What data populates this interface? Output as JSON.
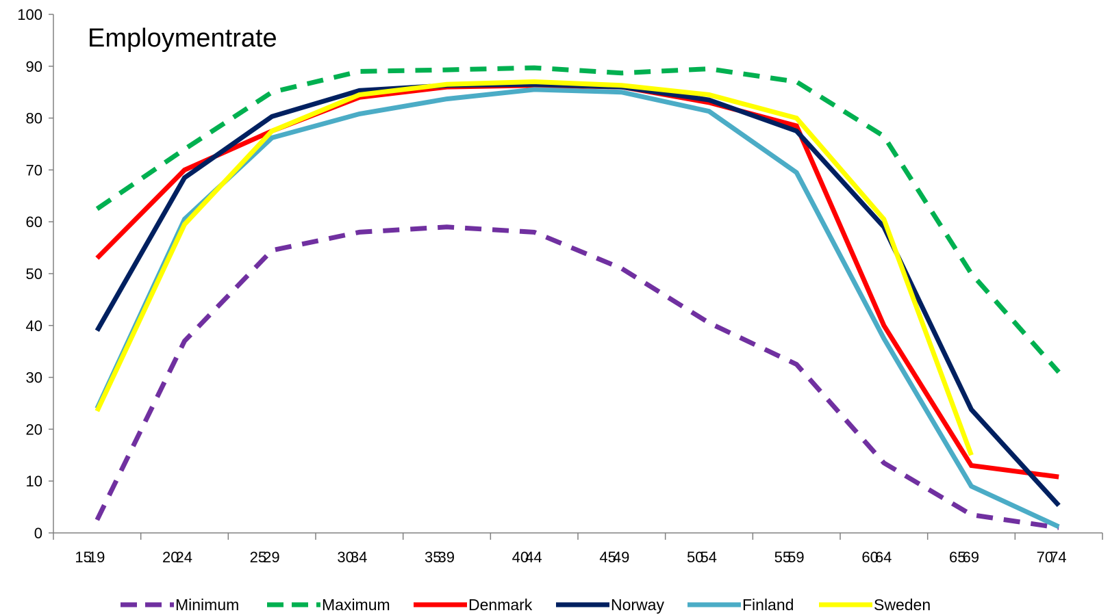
{
  "chart_data": {
    "type": "line",
    "title": "Employmentrate",
    "xlabel": "",
    "ylabel": "",
    "ylim": [
      0,
      100
    ],
    "yticks": [
      0,
      10,
      20,
      30,
      40,
      50,
      60,
      70,
      80,
      90,
      100
    ],
    "categories": [
      "15-19",
      "20-24",
      "25-29",
      "30-34",
      "35-39",
      "40-44",
      "45-49",
      "50-54",
      "55-59",
      "60-64",
      "65-69",
      "70-74"
    ],
    "category_labels": [
      [
        "15",
        "19"
      ],
      [
        "20",
        "24"
      ],
      [
        "25",
        "29"
      ],
      [
        "30",
        "34"
      ],
      [
        "35",
        "39"
      ],
      [
        "40",
        "44"
      ],
      [
        "45",
        "49"
      ],
      [
        "50",
        "54"
      ],
      [
        "55",
        "59"
      ],
      [
        "60",
        "64"
      ],
      [
        "65",
        "69"
      ],
      [
        "70",
        "74"
      ]
    ],
    "grid": false,
    "legend_position": "bottom",
    "series": [
      {
        "name": "Minimum",
        "color": "#7030a0",
        "dashed": true,
        "values": [
          2.5,
          37,
          54.5,
          58,
          59,
          58,
          51,
          40.5,
          32.5,
          13.5,
          3.5,
          1
        ]
      },
      {
        "name": "Maximum",
        "color": "#00b050",
        "dashed": true,
        "values": [
          62.5,
          74,
          85,
          89,
          89.3,
          89.7,
          88.7,
          89.5,
          87,
          76.5,
          50,
          31
        ]
      },
      {
        "name": "Denmark",
        "color": "#ff0000",
        "dashed": false,
        "values": [
          53,
          70,
          77.5,
          84,
          86,
          86.3,
          86,
          83,
          78.5,
          40,
          13,
          10.8
        ]
      },
      {
        "name": "Norway",
        "color": "#002060",
        "dashed": false,
        "values": [
          39,
          68.5,
          80.3,
          85.3,
          86.3,
          86.5,
          86,
          83.5,
          77.5,
          59,
          23.8,
          5.3
        ]
      },
      {
        "name": "Finland",
        "color": "#4bacc6",
        "dashed": false,
        "values": [
          24,
          60.5,
          76.2,
          80.8,
          83.7,
          85.5,
          85,
          81.3,
          69.5,
          37.5,
          9,
          1.2
        ]
      },
      {
        "name": "Sweden",
        "color": "#ffff00",
        "dashed": false,
        "values": [
          23.5,
          59.5,
          77.5,
          84.5,
          86.5,
          87,
          86.3,
          84.5,
          80,
          60.5,
          15,
          null
        ]
      }
    ]
  }
}
